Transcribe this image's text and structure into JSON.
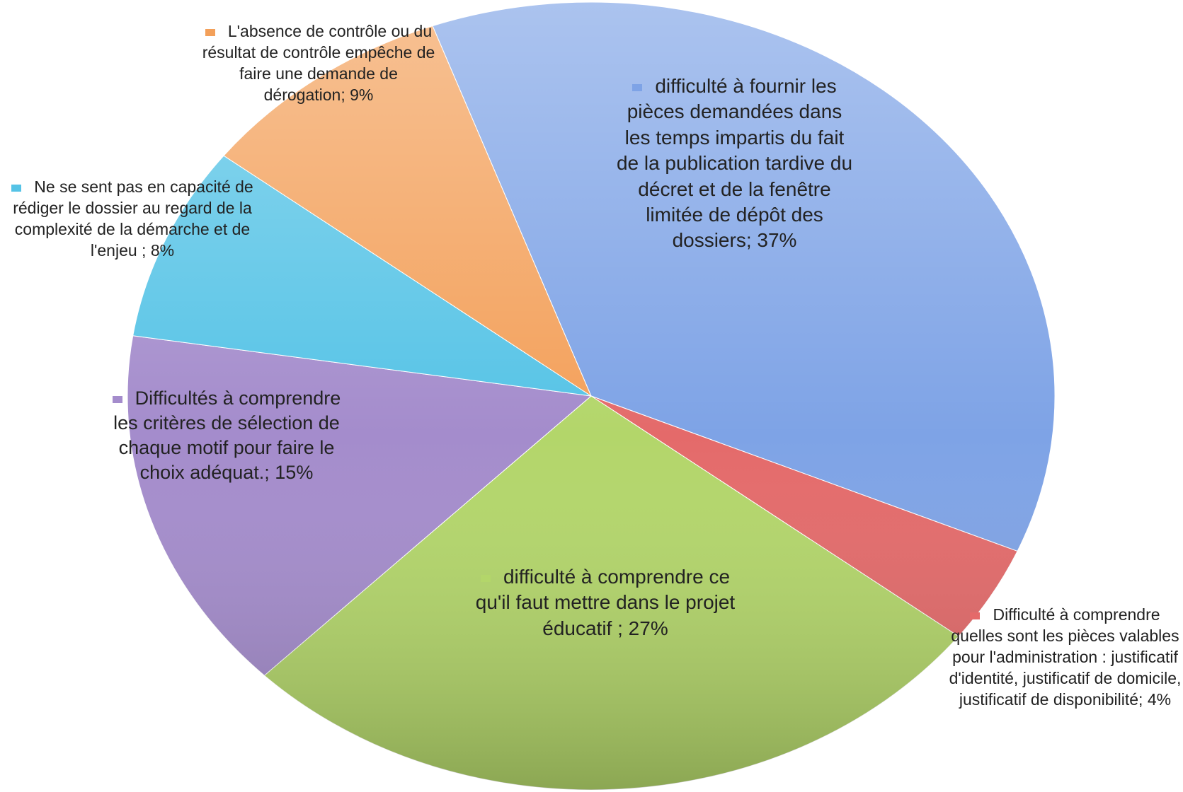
{
  "chart_data": {
    "type": "pie",
    "series": [
      {
        "name": "difficulté à fournir les pièces demandées dans les temps impartis du fait de la publication tardive du décret et de la fenêtre limitée de dépôt des dossiers",
        "color": "#7ea3e6",
        "values": [
          37
        ],
        "value_labels": [
          "difficulté à fournir les pièces demandées dans les temps impartis du fait de la publication tardive du décret et de la fenêtre limitée de dépôt des dossiers; 37%"
        ]
      },
      {
        "name": "Difficulté à comprendre quelles sont les pièces valables pour l'administration : justificatif d'identité, justificatif de domicile, justificatif de disponibilité",
        "color": "#e46a6a",
        "values": [
          4
        ],
        "value_labels": [
          "Difficulté à comprendre quelles sont les pièces valables pour l'administration : justificatif d'identité, justificatif de domicile, justificatif de disponibilité; 4%"
        ]
      },
      {
        "name": "difficulté à comprendre ce qu'il faut mettre dans le projet éducatif",
        "color": "#b3d66a",
        "values": [
          27
        ],
        "value_labels": [
          "difficulté à comprendre ce qu'il faut mettre dans le projet éducatif ; 27%"
        ]
      },
      {
        "name": "Difficultés à comprendre les critères de sélection de chaque motif pour faire le choix adéquat.",
        "color": "#a48ccc",
        "values": [
          15
        ],
        "value_labels": [
          "Difficultés à comprendre les critères de sélection de chaque motif pour faire le choix adéquat.; 15%"
        ]
      },
      {
        "name": "Ne se sent pas en capacité de rédiger le dossier au regard de la complexité de la démarche et de l'enjeu",
        "color": "#55c3e6",
        "values": [
          8
        ],
        "value_labels": [
          "Ne se sent pas en capacité de rédiger le dossier au regard de la complexité de la démarche et de l'enjeu ; 8%"
        ]
      },
      {
        "name": "L'absence de contrôle ou du résultat de contrôle empêche de faire une demande de dérogation",
        "color": "#f3a05a",
        "values": [
          9
        ],
        "value_labels": [
          "L'absence de contrôle ou du résultat de contrôle empêche de faire une demande de dérogation; 9%"
        ]
      }
    ]
  }
}
